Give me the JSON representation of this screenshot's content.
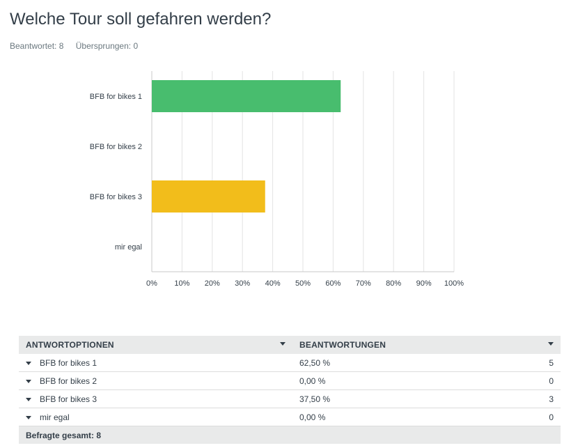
{
  "question": {
    "title": "Welche Tour soll gefahren werden?",
    "answered": "Beantwortet: 8",
    "skipped": "Übersprungen: 0"
  },
  "colors": {
    "bar_green": "#48bd6e",
    "bar_yellow": "#f2bd1b",
    "grid": "#e3e3e3",
    "axis": "#c8c8c8"
  },
  "chart_data": {
    "type": "bar",
    "orientation": "horizontal",
    "categories": [
      "BFB for bikes 1",
      "BFB for bikes 2",
      "BFB for bikes 3",
      "mir egal"
    ],
    "values": [
      62.5,
      0,
      37.5,
      0
    ],
    "colors": [
      "#48bd6e",
      null,
      "#f2bd1b",
      null
    ],
    "xlim": [
      0,
      100
    ],
    "xticks": [
      "0%",
      "10%",
      "20%",
      "30%",
      "40%",
      "50%",
      "60%",
      "70%",
      "80%",
      "90%",
      "100%"
    ],
    "grid": true
  },
  "table": {
    "col_options": "ANTWORTOPTIONEN",
    "col_responses": "BEANTWORTUNGEN",
    "rows": [
      {
        "label": "BFB for bikes 1",
        "percent": "62,50 %",
        "count": "5"
      },
      {
        "label": "BFB for bikes 2",
        "percent": "0,00 %",
        "count": "0"
      },
      {
        "label": "BFB for bikes 3",
        "percent": "37,50 %",
        "count": "3"
      },
      {
        "label": "mir egal",
        "percent": "0,00 %",
        "count": "0"
      }
    ],
    "total": "Befragte gesamt: 8"
  }
}
